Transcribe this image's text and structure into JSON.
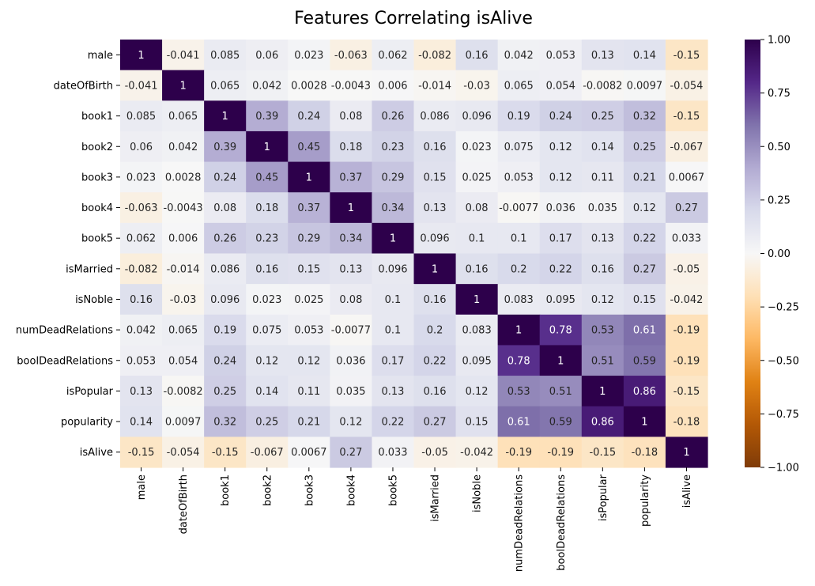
{
  "chart_data": {
    "type": "heatmap",
    "title": "Features Correlating isAlive",
    "xlabel": "",
    "ylabel": "",
    "variables": [
      "male",
      "dateOfBirth",
      "book1",
      "book2",
      "book3",
      "book4",
      "book5",
      "isMarried",
      "isNoble",
      "numDeadRelations",
      "boolDeadRelations",
      "isPopular",
      "popularity",
      "isAlive"
    ],
    "matrix": [
      [
        "1",
        "-0.041",
        "0.085",
        "0.06",
        "0.023",
        "-0.063",
        "0.062",
        "-0.082",
        "0.16",
        "0.042",
        "0.053",
        "0.13",
        "0.14",
        "-0.15"
      ],
      [
        "-0.041",
        "1",
        "0.065",
        "0.042",
        "0.0028",
        "-0.0043",
        "0.006",
        "-0.014",
        "-0.03",
        "0.065",
        "0.054",
        "-0.0082",
        "0.0097",
        "-0.054"
      ],
      [
        "0.085",
        "0.065",
        "1",
        "0.39",
        "0.24",
        "0.08",
        "0.26",
        "0.086",
        "0.096",
        "0.19",
        "0.24",
        "0.25",
        "0.32",
        "-0.15"
      ],
      [
        "0.06",
        "0.042",
        "0.39",
        "1",
        "0.45",
        "0.18",
        "0.23",
        "0.16",
        "0.023",
        "0.075",
        "0.12",
        "0.14",
        "0.25",
        "-0.067"
      ],
      [
        "0.023",
        "0.0028",
        "0.24",
        "0.45",
        "1",
        "0.37",
        "0.29",
        "0.15",
        "0.025",
        "0.053",
        "0.12",
        "0.11",
        "0.21",
        "0.0067"
      ],
      [
        "-0.063",
        "-0.0043",
        "0.08",
        "0.18",
        "0.37",
        "1",
        "0.34",
        "0.13",
        "0.08",
        "-0.0077",
        "0.036",
        "0.035",
        "0.12",
        "0.27"
      ],
      [
        "0.062",
        "0.006",
        "0.26",
        "0.23",
        "0.29",
        "0.34",
        "1",
        "0.096",
        "0.1",
        "0.1",
        "0.17",
        "0.13",
        "0.22",
        "0.033"
      ],
      [
        "-0.082",
        "-0.014",
        "0.086",
        "0.16",
        "0.15",
        "0.13",
        "0.096",
        "1",
        "0.16",
        "0.2",
        "0.22",
        "0.16",
        "0.27",
        "-0.05"
      ],
      [
        "0.16",
        "-0.03",
        "0.096",
        "0.023",
        "0.025",
        "0.08",
        "0.1",
        "0.16",
        "1",
        "0.083",
        "0.095",
        "0.12",
        "0.15",
        "-0.042"
      ],
      [
        "0.042",
        "0.065",
        "0.19",
        "0.075",
        "0.053",
        "-0.0077",
        "0.1",
        "0.2",
        "0.083",
        "1",
        "0.78",
        "0.53",
        "0.61",
        "-0.19"
      ],
      [
        "0.053",
        "0.054",
        "0.24",
        "0.12",
        "0.12",
        "0.036",
        "0.17",
        "0.22",
        "0.095",
        "0.78",
        "1",
        "0.51",
        "0.59",
        "-0.19"
      ],
      [
        "0.13",
        "-0.0082",
        "0.25",
        "0.14",
        "0.11",
        "0.035",
        "0.13",
        "0.16",
        "0.12",
        "0.53",
        "0.51",
        "1",
        "0.86",
        "-0.15"
      ],
      [
        "0.14",
        "0.0097",
        "0.32",
        "0.25",
        "0.21",
        "0.12",
        "0.22",
        "0.27",
        "0.15",
        "0.61",
        "0.59",
        "0.86",
        "1",
        "-0.18"
      ],
      [
        "-0.15",
        "-0.054",
        "-0.15",
        "-0.067",
        "0.0067",
        "0.27",
        "0.033",
        "-0.05",
        "-0.042",
        "-0.19",
        "-0.19",
        "-0.15",
        "-0.18",
        "1"
      ]
    ],
    "vmin": -1.0,
    "vmax": 1.0,
    "colormap": "PuOr",
    "colorbar_ticks": [
      "1.00",
      "0.75",
      "0.50",
      "0.25",
      "0.00",
      "−0.25",
      "−0.50",
      "−0.75",
      "−1.00"
    ],
    "colorbar_tick_values": [
      1.0,
      0.75,
      0.5,
      0.25,
      0.0,
      -0.25,
      -0.5,
      -0.75,
      -1.0
    ],
    "annotations": true,
    "grid": false
  }
}
